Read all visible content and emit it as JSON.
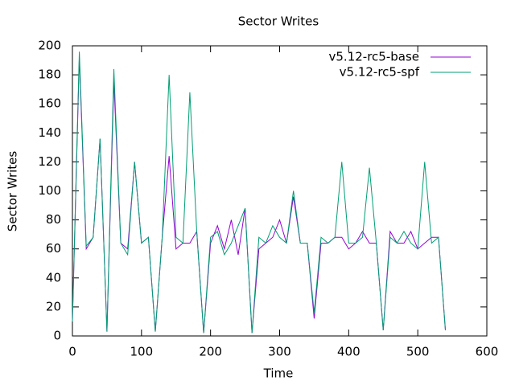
{
  "chart_data": {
    "type": "line",
    "title": "Sector Writes",
    "x_label": "Time",
    "y_label": "Sector Writes",
    "x": [
      0,
      10,
      20,
      30,
      40,
      50,
      60,
      70,
      80,
      90,
      100,
      110,
      120,
      130,
      140,
      150,
      160,
      170,
      180,
      190,
      200,
      210,
      220,
      230,
      240,
      250,
      260,
      270,
      280,
      290,
      300,
      310,
      320,
      330,
      340,
      350,
      360,
      370,
      380,
      390,
      400,
      410,
      420,
      430,
      440,
      450,
      460,
      470,
      480,
      490,
      500,
      510,
      520,
      530,
      540
    ],
    "series": [
      {
        "name": "v5.12-rc5-base",
        "color": "#9400d3",
        "values": [
          10,
          192,
          60,
          68,
          136,
          3,
          176,
          64,
          60,
          120,
          64,
          68,
          3,
          68,
          124,
          60,
          64,
          64,
          72,
          2,
          64,
          76,
          60,
          80,
          56,
          88,
          2,
          60,
          64,
          68,
          80,
          64,
          96,
          64,
          64,
          12,
          64,
          64,
          68,
          68,
          60,
          64,
          72,
          64,
          64,
          4,
          72,
          64,
          64,
          72,
          60,
          64,
          68,
          68,
          4
        ]
      },
      {
        "name": "v5.12-rc5-spf",
        "color": "#009e73",
        "values": [
          10,
          196,
          62,
          68,
          136,
          3,
          184,
          64,
          56,
          120,
          64,
          68,
          3,
          68,
          180,
          68,
          64,
          168,
          72,
          2,
          68,
          72,
          56,
          64,
          76,
          88,
          2,
          68,
          64,
          76,
          68,
          64,
          100,
          64,
          64,
          16,
          68,
          64,
          68,
          120,
          64,
          64,
          68,
          116,
          64,
          4,
          68,
          64,
          72,
          64,
          60,
          120,
          64,
          68,
          4
        ]
      }
    ],
    "xlim": [
      0,
      600
    ],
    "xticks": [
      0,
      100,
      200,
      300,
      400,
      500,
      600
    ],
    "ylim": [
      0,
      200
    ],
    "yticks": [
      0,
      20,
      40,
      60,
      80,
      100,
      120,
      140,
      160,
      180,
      200
    ],
    "legend": "top-right"
  }
}
